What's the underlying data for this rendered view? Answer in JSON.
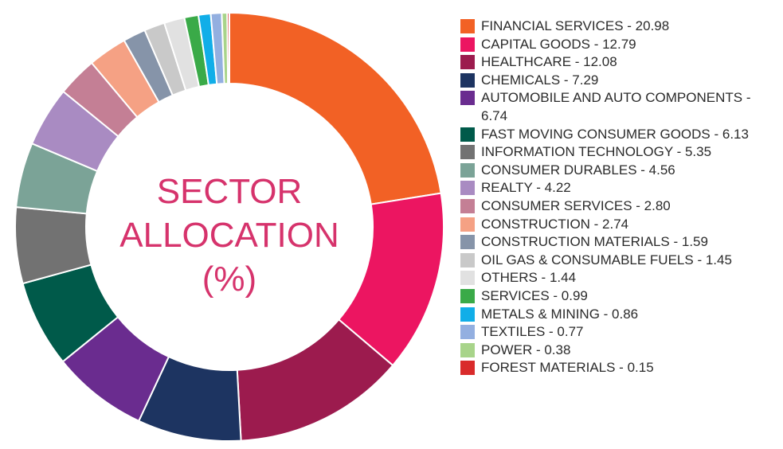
{
  "chart_data": {
    "type": "pie",
    "donut": true,
    "title": "SECTOR ALLOCATION (%)",
    "categories": [
      "FINANCIAL SERVICES - 20.98",
      "CAPITAL GOODS - 12.79",
      "HEALTHCARE - 12.08",
      "CHEMICALS - 7.29",
      "AUTOMOBILE AND AUTO COMPONENTS - 6.74",
      "FAST MOVING CONSUMER GOODS - 6.13",
      "INFORMATION TECHNOLOGY - 5.35",
      "CONSUMER DURABLES - 4.56",
      "REALTY - 4.22",
      "CONSUMER SERVICES - 2.80",
      "CONSTRUCTION - 2.74",
      "CONSTRUCTION MATERIALS - 1.59",
      "OIL GAS & CONSUMABLE FUELS - 1.45",
      "OTHERS - 1.44",
      "SERVICES - 0.99",
      "METALS & MINING - 0.86",
      "TEXTILES - 0.77",
      "POWER - 0.38",
      "FOREST MATERIALS - 0.15"
    ],
    "values": [
      20.98,
      12.79,
      12.08,
      7.29,
      6.74,
      6.13,
      5.35,
      4.56,
      4.22,
      2.8,
      2.74,
      1.59,
      1.45,
      1.44,
      0.99,
      0.86,
      0.77,
      0.38,
      0.15
    ],
    "colors": [
      "#f26125",
      "#ec1561",
      "#9c1b4e",
      "#1d3461",
      "#6a2c8f",
      "#005a4a",
      "#727272",
      "#7ba397",
      "#a98bc2",
      "#c47f95",
      "#f5a184",
      "#8694a9",
      "#c9c9c9",
      "#e1e1e1",
      "#3aaa48",
      "#11aee8",
      "#93afe0",
      "#a8d48a",
      "#d92b2b"
    ],
    "legend": "right"
  }
}
